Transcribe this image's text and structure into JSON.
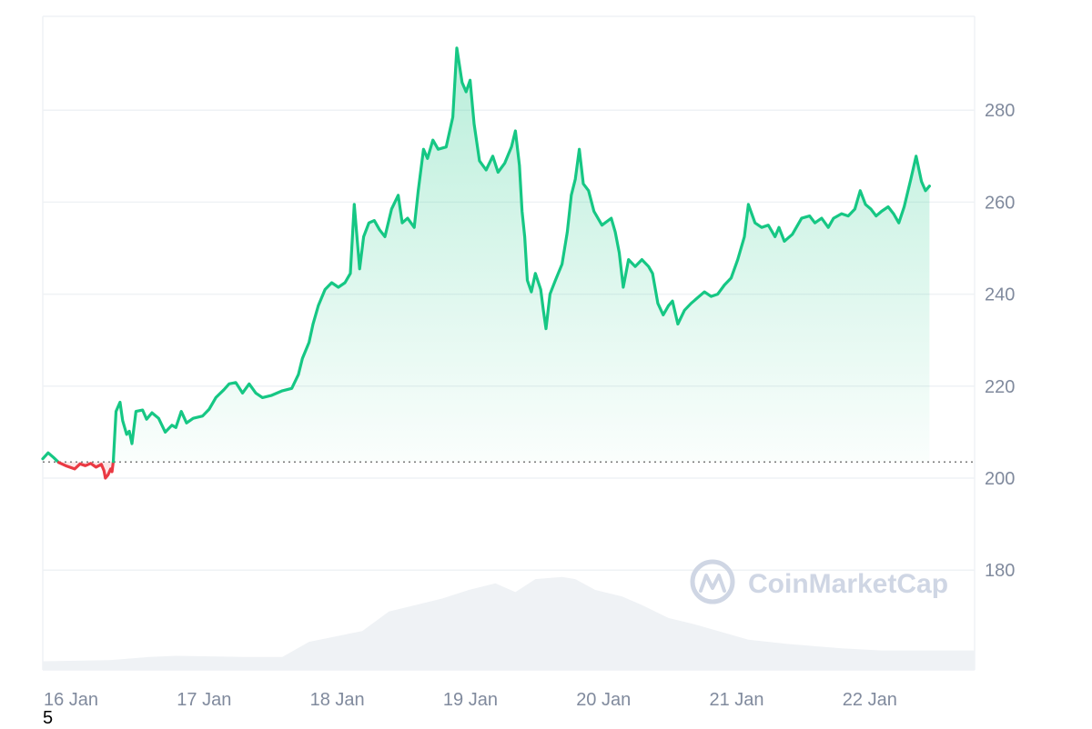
{
  "chart_data": {
    "type": "area",
    "title": "",
    "xlabel": "",
    "ylabel": "",
    "x_tick_labels": [
      "16 Jan",
      "17 Jan",
      "18 Jan",
      "19 Jan",
      "20 Jan",
      "21 Jan",
      "22 Jan"
    ],
    "y_tick_labels": [
      "180",
      "200",
      "220",
      "240",
      "260",
      "280"
    ],
    "ylim": [
      163,
      298
    ],
    "xlim_days": [
      0,
      7
    ],
    "baseline": 203.5,
    "grid": true,
    "legend": "none",
    "colors": {
      "up": "#16c784",
      "down": "#ea3943",
      "volume": "#eff2f5",
      "grid": "#eff2f5"
    },
    "series": [
      {
        "values": [
          [
            0.0,
            204.2
          ],
          [
            0.04,
            205.5
          ],
          [
            0.08,
            204.5
          ],
          [
            0.12,
            203.4
          ],
          [
            0.18,
            202.6
          ],
          [
            0.24,
            202.0
          ],
          [
            0.28,
            203.1
          ],
          [
            0.32,
            202.7
          ],
          [
            0.36,
            203.2
          ],
          [
            0.4,
            202.4
          ],
          [
            0.44,
            203.0
          ],
          [
            0.46,
            201.6
          ],
          [
            0.47,
            200.0
          ],
          [
            0.49,
            200.7
          ],
          [
            0.51,
            202.0
          ],
          [
            0.52,
            201.4
          ],
          [
            0.53,
            203.6
          ],
          [
            0.55,
            214.5
          ],
          [
            0.58,
            216.5
          ],
          [
            0.6,
            212.5
          ],
          [
            0.63,
            209.5
          ],
          [
            0.65,
            210.2
          ],
          [
            0.67,
            207.5
          ],
          [
            0.7,
            214.5
          ],
          [
            0.75,
            214.8
          ],
          [
            0.78,
            212.8
          ],
          [
            0.82,
            214.2
          ],
          [
            0.87,
            213.0
          ],
          [
            0.92,
            210.0
          ],
          [
            0.97,
            211.5
          ],
          [
            1.0,
            211.0
          ],
          [
            1.04,
            214.5
          ],
          [
            1.08,
            212.0
          ],
          [
            1.13,
            213.0
          ],
          [
            1.2,
            213.5
          ],
          [
            1.25,
            215.0
          ],
          [
            1.3,
            217.5
          ],
          [
            1.36,
            219.2
          ],
          [
            1.4,
            220.5
          ],
          [
            1.45,
            220.8
          ],
          [
            1.5,
            218.5
          ],
          [
            1.55,
            220.5
          ],
          [
            1.6,
            218.5
          ],
          [
            1.65,
            217.5
          ],
          [
            1.72,
            218.0
          ],
          [
            1.8,
            219.0
          ],
          [
            1.87,
            219.5
          ],
          [
            1.92,
            222.5
          ],
          [
            1.95,
            226.0
          ],
          [
            2.0,
            229.5
          ],
          [
            2.03,
            233.5
          ],
          [
            2.07,
            237.5
          ],
          [
            2.12,
            241.0
          ],
          [
            2.17,
            242.5
          ],
          [
            2.22,
            241.5
          ],
          [
            2.27,
            242.5
          ],
          [
            2.31,
            244.5
          ],
          [
            2.34,
            259.5
          ],
          [
            2.38,
            245.5
          ],
          [
            2.41,
            252.5
          ],
          [
            2.45,
            255.5
          ],
          [
            2.49,
            256.0
          ],
          [
            2.53,
            254.0
          ],
          [
            2.57,
            252.5
          ],
          [
            2.62,
            258.5
          ],
          [
            2.67,
            261.5
          ],
          [
            2.7,
            255.5
          ],
          [
            2.74,
            256.5
          ],
          [
            2.79,
            254.5
          ],
          [
            2.82,
            262.5
          ],
          [
            2.86,
            271.5
          ],
          [
            2.89,
            269.5
          ],
          [
            2.93,
            273.5
          ],
          [
            2.97,
            271.5
          ],
          [
            3.03,
            272.0
          ],
          [
            3.08,
            278.5
          ],
          [
            3.11,
            293.5
          ],
          [
            3.15,
            286.0
          ],
          [
            3.18,
            284.0
          ],
          [
            3.21,
            286.5
          ],
          [
            3.24,
            277.0
          ],
          [
            3.28,
            269.0
          ],
          [
            3.33,
            267.0
          ],
          [
            3.38,
            270.0
          ],
          [
            3.42,
            266.5
          ],
          [
            3.47,
            268.5
          ],
          [
            3.52,
            272.0
          ],
          [
            3.55,
            275.5
          ],
          [
            3.58,
            268.0
          ],
          [
            3.6,
            258.0
          ],
          [
            3.62,
            252.5
          ],
          [
            3.64,
            243.0
          ],
          [
            3.67,
            240.5
          ],
          [
            3.7,
            244.5
          ],
          [
            3.74,
            241.0
          ],
          [
            3.76,
            236.5
          ],
          [
            3.78,
            232.5
          ],
          [
            3.81,
            240.0
          ],
          [
            3.85,
            243.0
          ],
          [
            3.9,
            246.5
          ],
          [
            3.94,
            253.5
          ],
          [
            3.97,
            261.5
          ],
          [
            4.0,
            265.0
          ],
          [
            4.03,
            271.5
          ],
          [
            4.06,
            264.0
          ],
          [
            4.1,
            262.5
          ],
          [
            4.14,
            258.0
          ],
          [
            4.2,
            255.0
          ],
          [
            4.27,
            256.5
          ],
          [
            4.3,
            253.5
          ],
          [
            4.33,
            249.0
          ],
          [
            4.36,
            241.5
          ],
          [
            4.4,
            247.5
          ],
          [
            4.45,
            246.0
          ],
          [
            4.5,
            247.5
          ],
          [
            4.55,
            246.0
          ],
          [
            4.58,
            244.5
          ],
          [
            4.62,
            238.0
          ],
          [
            4.66,
            235.5
          ],
          [
            4.7,
            237.5
          ],
          [
            4.73,
            238.5
          ],
          [
            4.77,
            233.5
          ],
          [
            4.82,
            236.5
          ],
          [
            4.87,
            238.0
          ],
          [
            4.93,
            239.5
          ],
          [
            4.97,
            240.5
          ],
          [
            5.02,
            239.5
          ],
          [
            5.07,
            240.0
          ],
          [
            5.12,
            242.0
          ],
          [
            5.17,
            243.5
          ],
          [
            5.22,
            247.5
          ],
          [
            5.27,
            252.5
          ],
          [
            5.3,
            259.5
          ],
          [
            5.35,
            255.5
          ],
          [
            5.4,
            254.5
          ],
          [
            5.45,
            255.0
          ],
          [
            5.5,
            252.5
          ],
          [
            5.53,
            254.5
          ],
          [
            5.57,
            251.5
          ],
          [
            5.63,
            253.0
          ],
          [
            5.7,
            256.5
          ],
          [
            5.76,
            257.0
          ],
          [
            5.8,
            255.5
          ],
          [
            5.85,
            256.5
          ],
          [
            5.9,
            254.5
          ],
          [
            5.94,
            256.5
          ],
          [
            6.0,
            257.5
          ],
          [
            6.05,
            257.0
          ],
          [
            6.1,
            258.5
          ],
          [
            6.14,
            262.5
          ],
          [
            6.18,
            259.5
          ],
          [
            6.22,
            258.5
          ],
          [
            6.26,
            257.0
          ],
          [
            6.3,
            258.0
          ],
          [
            6.35,
            259.0
          ],
          [
            6.39,
            257.5
          ],
          [
            6.43,
            255.5
          ],
          [
            6.47,
            259.0
          ],
          [
            6.52,
            265.0
          ],
          [
            6.56,
            270.0
          ],
          [
            6.6,
            264.5
          ],
          [
            6.63,
            262.5
          ],
          [
            6.66,
            263.5
          ]
        ]
      }
    ],
    "volume": [
      [
        0.0,
        0.04
      ],
      [
        0.5,
        0.045
      ],
      [
        0.8,
        0.06
      ],
      [
        1.0,
        0.065
      ],
      [
        1.5,
        0.06
      ],
      [
        1.8,
        0.06
      ],
      [
        2.0,
        0.13
      ],
      [
        2.4,
        0.18
      ],
      [
        2.6,
        0.27
      ],
      [
        3.0,
        0.33
      ],
      [
        3.2,
        0.37
      ],
      [
        3.4,
        0.4
      ],
      [
        3.55,
        0.36
      ],
      [
        3.7,
        0.42
      ],
      [
        3.9,
        0.43
      ],
      [
        4.0,
        0.42
      ],
      [
        4.15,
        0.37
      ],
      [
        4.35,
        0.34
      ],
      [
        4.5,
        0.3
      ],
      [
        4.7,
        0.24
      ],
      [
        4.9,
        0.21
      ],
      [
        5.3,
        0.14
      ],
      [
        5.6,
        0.12
      ],
      [
        6.0,
        0.1
      ],
      [
        6.3,
        0.09
      ],
      [
        6.66,
        0.09
      ]
    ]
  },
  "watermark": {
    "text": "CoinMarketCap",
    "icon": "coinmarketcap-logo-icon"
  },
  "corner_label": "5"
}
